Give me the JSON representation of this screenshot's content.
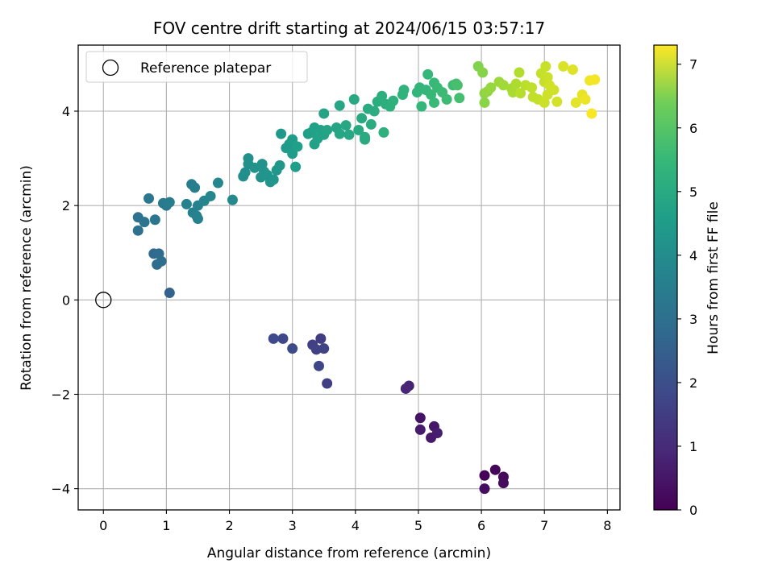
{
  "chart_data": {
    "type": "scatter",
    "title": "FOV centre drift starting at 2024/06/15 03:57:17",
    "xlabel": "Angular distance from reference (arcmin)",
    "ylabel": "Rotation from reference (arcmin)",
    "xlim": [
      -0.4,
      8.2
    ],
    "ylim": [
      -4.45,
      5.4
    ],
    "xticks": [
      0,
      1,
      2,
      3,
      4,
      5,
      6,
      7,
      8
    ],
    "yticks": [
      -4,
      -2,
      0,
      2,
      4
    ],
    "grid": true,
    "legend": {
      "placement": "top-left",
      "entries": [
        "Reference platepar"
      ]
    },
    "reference_point": {
      "x": 0,
      "y": 0
    },
    "colorbar": {
      "label": "Hours from first FF file",
      "colormap": "viridis",
      "range": [
        0,
        7.3
      ],
      "ticks": [
        0,
        1,
        2,
        3,
        4,
        5,
        6,
        7
      ]
    },
    "points": [
      [
        6.05,
        -3.72,
        0.05
      ],
      [
        6.22,
        -3.6,
        0.1
      ],
      [
        6.35,
        -3.75,
        0.15
      ],
      [
        6.35,
        -3.88,
        0.2
      ],
      [
        6.05,
        -4.0,
        0.25
      ],
      [
        5.03,
        -2.5,
        0.4
      ],
      [
        5.25,
        -2.68,
        0.45
      ],
      [
        5.2,
        -2.92,
        0.5
      ],
      [
        5.03,
        -2.75,
        0.55
      ],
      [
        5.3,
        -2.82,
        0.6
      ],
      [
        4.85,
        -1.82,
        0.7
      ],
      [
        4.8,
        -1.88,
        0.75
      ],
      [
        3.45,
        -0.82,
        1.3
      ],
      [
        3.55,
        -1.77,
        1.35
      ],
      [
        3.32,
        -0.95,
        1.4
      ],
      [
        3.38,
        -1.05,
        1.45
      ],
      [
        3.5,
        -1.03,
        1.5
      ],
      [
        3.42,
        -1.4,
        1.55
      ],
      [
        2.85,
        -0.82,
        1.6
      ],
      [
        2.7,
        -0.82,
        1.65
      ],
      [
        3.0,
        -1.03,
        1.7
      ],
      [
        1.05,
        0.15,
        2.3
      ],
      [
        0.8,
        0.98,
        2.5
      ],
      [
        0.88,
        0.98,
        2.55
      ],
      [
        0.85,
        0.75,
        2.6
      ],
      [
        0.92,
        0.82,
        2.65
      ],
      [
        0.55,
        1.47,
        2.7
      ],
      [
        0.55,
        1.75,
        2.75
      ],
      [
        0.65,
        1.65,
        2.8
      ],
      [
        0.82,
        1.7,
        2.85
      ],
      [
        0.72,
        2.15,
        2.9
      ],
      [
        0.95,
        2.05,
        2.95
      ],
      [
        1.0,
        2.0,
        3.0
      ],
      [
        1.05,
        2.07,
        3.05
      ],
      [
        1.4,
        2.45,
        3.1
      ],
      [
        1.45,
        2.38,
        3.15
      ],
      [
        1.32,
        2.03,
        3.2
      ],
      [
        1.42,
        1.85,
        3.22
      ],
      [
        1.48,
        1.78,
        3.24
      ],
      [
        1.5,
        1.72,
        3.26
      ],
      [
        1.5,
        2.0,
        3.28
      ],
      [
        1.6,
        2.1,
        3.3
      ],
      [
        1.7,
        2.2,
        3.35
      ],
      [
        1.82,
        2.48,
        3.4
      ],
      [
        2.05,
        2.12,
        3.45
      ],
      [
        2.22,
        2.62,
        3.6
      ],
      [
        2.25,
        2.7,
        3.62
      ],
      [
        2.3,
        2.88,
        3.64
      ],
      [
        2.3,
        3.0,
        3.66
      ],
      [
        2.4,
        2.8,
        3.7
      ],
      [
        2.5,
        2.6,
        3.72
      ],
      [
        2.52,
        2.88,
        3.74
      ],
      [
        2.55,
        2.72,
        3.76
      ],
      [
        2.6,
        2.65,
        3.78
      ],
      [
        2.65,
        2.5,
        3.8
      ],
      [
        2.7,
        2.55,
        3.82
      ],
      [
        2.75,
        2.75,
        3.84
      ],
      [
        2.8,
        2.85,
        3.86
      ],
      [
        2.82,
        3.52,
        3.9
      ],
      [
        2.9,
        3.22,
        3.95
      ],
      [
        2.95,
        3.3,
        4.0
      ],
      [
        3.0,
        3.1,
        4.02
      ],
      [
        3.0,
        3.4,
        4.04
      ],
      [
        3.05,
        2.82,
        4.06
      ],
      [
        3.08,
        3.25,
        4.08
      ],
      [
        3.25,
        3.52,
        4.1
      ],
      [
        3.3,
        3.55,
        4.12
      ],
      [
        3.35,
        3.65,
        4.14
      ],
      [
        3.35,
        3.3,
        4.16
      ],
      [
        3.4,
        3.42,
        4.18
      ],
      [
        3.45,
        3.6,
        4.2
      ],
      [
        3.5,
        3.5,
        4.22
      ],
      [
        3.55,
        3.6,
        4.24
      ],
      [
        3.5,
        3.95,
        4.26
      ],
      [
        3.7,
        3.65,
        4.28
      ],
      [
        3.75,
        3.52,
        4.3
      ],
      [
        3.75,
        4.12,
        4.32
      ],
      [
        3.85,
        3.7,
        4.34
      ],
      [
        3.9,
        3.5,
        4.36
      ],
      [
        3.98,
        4.25,
        4.38
      ],
      [
        4.05,
        3.6,
        4.4
      ],
      [
        4.1,
        3.85,
        4.42
      ],
      [
        4.15,
        3.45,
        4.44
      ],
      [
        4.15,
        3.4,
        4.46
      ],
      [
        4.2,
        4.05,
        4.48
      ],
      [
        4.25,
        3.72,
        4.5
      ],
      [
        4.3,
        4.0,
        4.52
      ],
      [
        4.35,
        4.2,
        4.54
      ],
      [
        4.42,
        4.32,
        4.56
      ],
      [
        4.48,
        4.15,
        4.58
      ],
      [
        4.45,
        3.55,
        4.6
      ],
      [
        4.55,
        4.1,
        4.62
      ],
      [
        4.6,
        4.22,
        4.64
      ],
      [
        4.75,
        4.35,
        4.7
      ],
      [
        4.77,
        4.45,
        4.72
      ],
      [
        4.98,
        4.4,
        4.76
      ],
      [
        5.02,
        4.5,
        4.8
      ],
      [
        5.05,
        4.1,
        4.82
      ],
      [
        5.12,
        4.45,
        4.84
      ],
      [
        5.15,
        4.78,
        4.86
      ],
      [
        5.2,
        4.35,
        4.88
      ],
      [
        5.25,
        4.6,
        4.9
      ],
      [
        5.25,
        4.18,
        4.92
      ],
      [
        5.3,
        4.5,
        4.94
      ],
      [
        5.38,
        4.4,
        4.96
      ],
      [
        5.45,
        4.25,
        4.98
      ],
      [
        5.55,
        4.55,
        5.0
      ],
      [
        5.6,
        4.58,
        5.05
      ],
      [
        5.65,
        4.28,
        5.1
      ],
      [
        5.62,
        4.55,
        5.15
      ],
      [
        5.95,
        4.95,
        5.9
      ],
      [
        6.02,
        4.82,
        5.95
      ],
      [
        6.05,
        4.18,
        6.0
      ],
      [
        6.05,
        4.38,
        6.05
      ],
      [
        6.1,
        4.42,
        6.1
      ],
      [
        6.15,
        4.5,
        6.15
      ],
      [
        6.28,
        4.62,
        6.2
      ],
      [
        6.35,
        4.55,
        6.25
      ],
      [
        6.48,
        4.48,
        6.3
      ],
      [
        6.5,
        4.4,
        6.35
      ],
      [
        6.55,
        4.58,
        6.4
      ],
      [
        6.6,
        4.82,
        6.45
      ],
      [
        6.62,
        4.38,
        6.5
      ],
      [
        6.7,
        4.55,
        6.55
      ],
      [
        6.8,
        4.5,
        6.6
      ],
      [
        6.82,
        4.3,
        6.62
      ],
      [
        6.9,
        4.25,
        6.64
      ],
      [
        6.95,
        4.8,
        6.66
      ],
      [
        7.0,
        4.62,
        6.68
      ],
      [
        7.02,
        4.95,
        6.7
      ],
      [
        7.05,
        4.72,
        6.72
      ],
      [
        7.0,
        4.18,
        6.74
      ],
      [
        7.05,
        4.35,
        6.76
      ],
      [
        7.08,
        4.55,
        6.78
      ],
      [
        7.15,
        4.45,
        6.8
      ],
      [
        7.2,
        4.2,
        6.82
      ],
      [
        7.3,
        4.95,
        6.9
      ],
      [
        7.45,
        4.88,
        6.95
      ],
      [
        7.5,
        4.18,
        7.0
      ],
      [
        7.6,
        4.35,
        7.05
      ],
      [
        7.65,
        4.25,
        7.1
      ],
      [
        7.72,
        4.65,
        7.15
      ],
      [
        7.8,
        4.67,
        7.2
      ],
      [
        7.75,
        3.95,
        7.25
      ]
    ]
  }
}
